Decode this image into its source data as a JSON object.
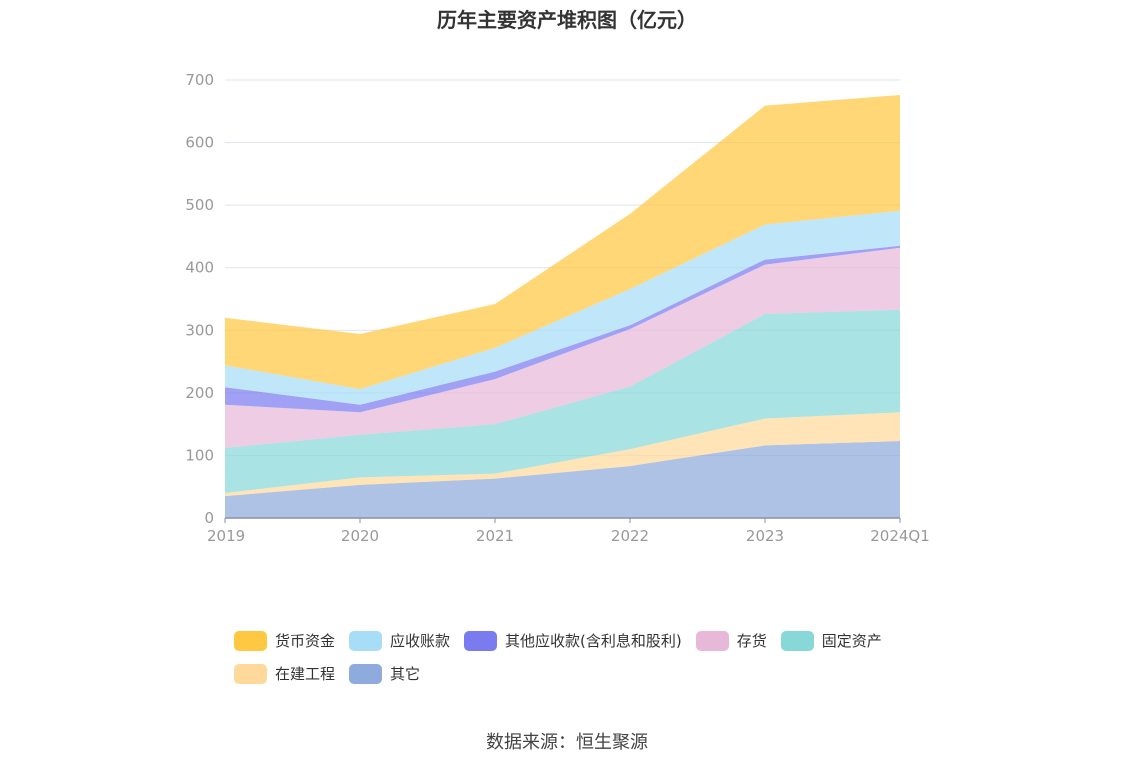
{
  "chart_data": {
    "type": "area",
    "stacked": true,
    "title": "历年主要资产堆积图（亿元）",
    "categories": [
      "2019",
      "2020",
      "2021",
      "2022",
      "2023",
      "2024Q1"
    ],
    "ylim": [
      0,
      700
    ],
    "yticks": [
      0,
      100,
      200,
      300,
      400,
      500,
      600,
      700
    ],
    "grid": true,
    "legend_position": "bottom",
    "series": [
      {
        "name": "其它",
        "color": "#8faadc",
        "values": [
          35,
          53,
          63,
          83,
          116,
          123
        ]
      },
      {
        "name": "在建工程",
        "color": "#ffd99b",
        "values": [
          5,
          12,
          8,
          27,
          43,
          46
        ]
      },
      {
        "name": "固定资产",
        "color": "#88d8d8",
        "values": [
          72,
          68,
          79,
          100,
          167,
          164
        ]
      },
      {
        "name": "存货",
        "color": "#e8b8d8",
        "values": [
          69,
          36,
          72,
          92,
          79,
          99
        ]
      },
      {
        "name": "其他应收款(含利息和股利)",
        "color": "#7b7bf0",
        "values": [
          28,
          12,
          12,
          6,
          8,
          3
        ]
      },
      {
        "name": "应收账款",
        "color": "#a8ddf8",
        "values": [
          35,
          25,
          38,
          58,
          56,
          56
        ]
      },
      {
        "name": "货币资金",
        "color": "#ffc843",
        "values": [
          76,
          88,
          70,
          120,
          190,
          185
        ]
      }
    ]
  },
  "legend_order": [
    "货币资金",
    "应收账款",
    "其他应收款(含利息和股利)",
    "存货",
    "固定资产",
    "在建工程",
    "其它"
  ],
  "source": "数据来源：恒生聚源"
}
